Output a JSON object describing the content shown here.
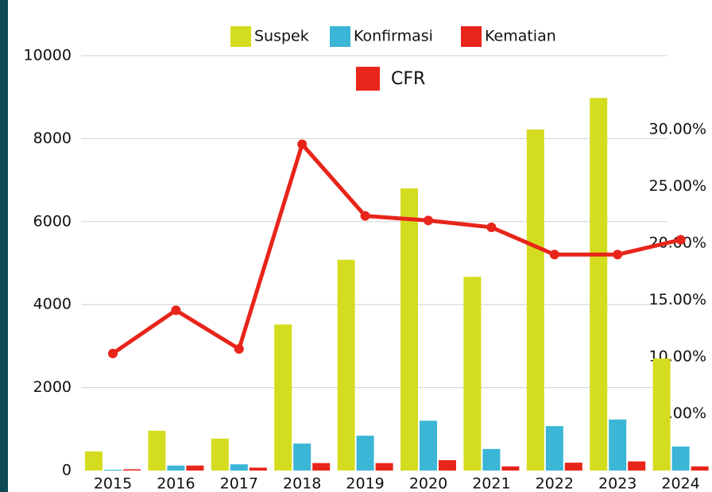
{
  "chart_data": {
    "type": "bar",
    "categories": [
      "2015",
      "2016",
      "2017",
      "2018",
      "2019",
      "2020",
      "2021",
      "2022",
      "2023",
      "2024"
    ],
    "series": [
      {
        "name": "Suspek",
        "color": "#d4dc1f",
        "values": [
          460,
          960,
          770,
          3520,
          5080,
          6800,
          4670,
          8220,
          8980,
          2700
        ]
      },
      {
        "name": "Konfirmasi",
        "color": "#3bb6d6",
        "values": [
          20,
          120,
          150,
          650,
          840,
          1200,
          520,
          1070,
          1230,
          580
        ]
      },
      {
        "name": "Kematian",
        "color": "#e8251a",
        "values": [
          30,
          120,
          70,
          180,
          180,
          250,
          100,
          190,
          220,
          100
        ]
      },
      {
        "name": "CFR",
        "color": "#e8251a",
        "axis": "y2",
        "type": "line",
        "values": [
          10.3,
          14.1,
          10.7,
          28.7,
          22.4,
          22.0,
          21.4,
          19.0,
          19.0,
          20.3
        ]
      }
    ],
    "ylim": [
      0,
      10000
    ],
    "yticks": [
      0,
      2000,
      4000,
      6000,
      8000,
      10000
    ],
    "y2lim": [
      0,
      36.5
    ],
    "y2ticks": [
      {
        "value": 5,
        "label": "5.00%"
      },
      {
        "value": 10,
        "label": "10.00%"
      },
      {
        "value": 15,
        "label": "15.00%"
      },
      {
        "value": 20,
        "label": "20.00%"
      },
      {
        "value": 25,
        "label": "25.00%"
      },
      {
        "value": 30,
        "label": "30.00%"
      }
    ],
    "grid": true
  }
}
